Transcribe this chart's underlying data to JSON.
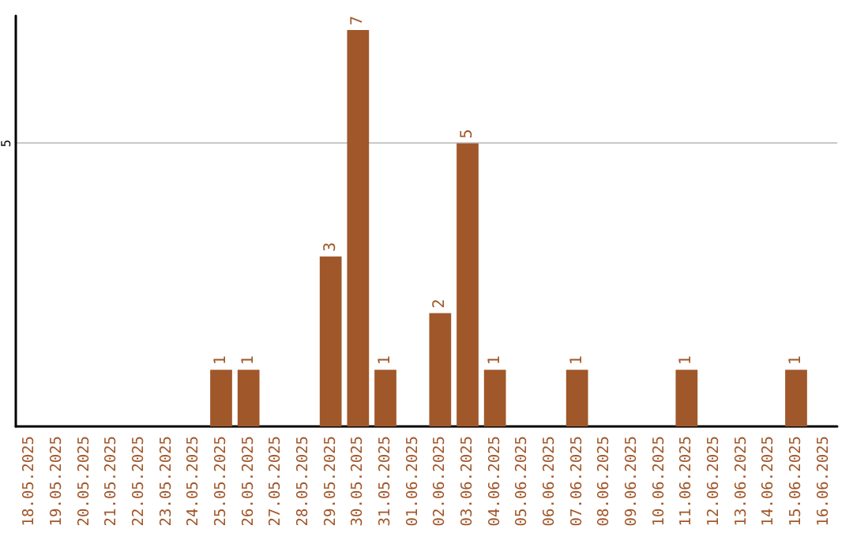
{
  "chart_data": {
    "type": "bar",
    "categories": [
      "18.05.2025",
      "19.05.2025",
      "20.05.2025",
      "21.05.2025",
      "22.05.2025",
      "23.05.2025",
      "24.05.2025",
      "25.05.2025",
      "26.05.2025",
      "27.05.2025",
      "28.05.2025",
      "29.05.2025",
      "30.05.2025",
      "31.05.2025",
      "01.06.2025",
      "02.06.2025",
      "03.06.2025",
      "04.06.2025",
      "05.06.2025",
      "06.06.2025",
      "07.06.2025",
      "08.06.2025",
      "09.06.2025",
      "10.06.2025",
      "11.06.2025",
      "12.06.2025",
      "13.06.2025",
      "14.06.2025",
      "15.06.2025",
      "16.06.2025"
    ],
    "values": [
      0,
      0,
      0,
      0,
      0,
      0,
      0,
      1,
      1,
      0,
      0,
      3,
      7,
      1,
      0,
      2,
      5,
      1,
      0,
      0,
      1,
      0,
      0,
      0,
      1,
      0,
      0,
      0,
      1,
      0
    ],
    "value_labels": [
      null,
      null,
      null,
      null,
      null,
      null,
      null,
      "1",
      "1",
      null,
      null,
      "3",
      "7",
      "1",
      null,
      "2",
      "5",
      "1",
      null,
      null,
      "1",
      null,
      null,
      null,
      "1",
      null,
      null,
      null,
      "1",
      null
    ],
    "color": "#a0572a",
    "ylim": [
      0,
      7.25
    ],
    "yticks": [
      5
    ],
    "grid": "y"
  }
}
